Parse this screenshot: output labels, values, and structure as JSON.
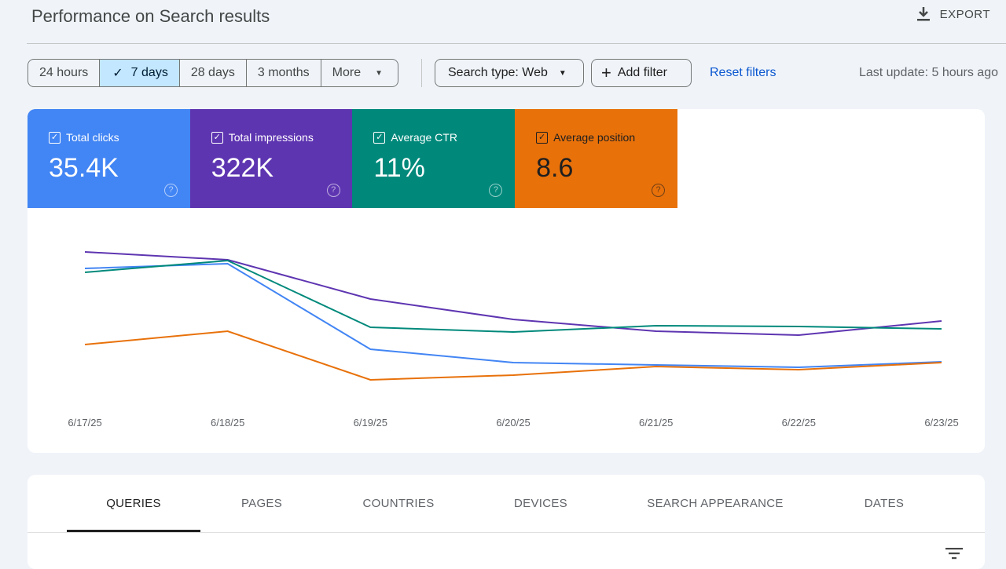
{
  "header": {
    "title": "Performance on Search results",
    "export_label": "EXPORT"
  },
  "filters": {
    "date_ranges": [
      {
        "label": "24 hours",
        "selected": false
      },
      {
        "label": "7 days",
        "selected": true
      },
      {
        "label": "28 days",
        "selected": false
      },
      {
        "label": "3 months",
        "selected": false
      },
      {
        "label": "More",
        "selected": false
      }
    ],
    "search_type": "Search type: Web",
    "add_filter": "Add filter",
    "reset": "Reset filters",
    "last_update": "Last update: 5 hours ago"
  },
  "metrics": [
    {
      "label": "Total clicks",
      "value": "35.4K",
      "color": "#4285f4",
      "checked": true
    },
    {
      "label": "Total impressions",
      "value": "322K",
      "color": "#5e35b1",
      "checked": true
    },
    {
      "label": "Average CTR",
      "value": "11%",
      "color": "#00897b",
      "checked": true
    },
    {
      "label": "Average position",
      "value": "8.6",
      "color": "#e8710a",
      "checked": true
    }
  ],
  "chart_data": {
    "type": "line",
    "categories": [
      "6/17/25",
      "6/18/25",
      "6/19/25",
      "6/20/25",
      "6/21/25",
      "6/22/25",
      "6/23/25"
    ],
    "y_axis": "hidden, independent relative scales per metric (values are relative levels 0-100)",
    "grid": false,
    "series": [
      {
        "name": "Total clicks",
        "color": "#4285f4",
        "values": [
          79,
          82,
          27.5,
          19,
          17.5,
          16,
          19.5
        ]
      },
      {
        "name": "Total impressions",
        "color": "#5e35b1",
        "values": [
          89.5,
          84.5,
          59.5,
          46.5,
          39,
          36.5,
          45.5
        ]
      },
      {
        "name": "Average CTR",
        "color": "#00897b",
        "values": [
          76.5,
          84,
          41.5,
          38.5,
          42.5,
          42,
          40.5
        ]
      },
      {
        "name": "Average position",
        "color": "#e8710a",
        "values": [
          30.5,
          39,
          8,
          11,
          16.5,
          14.5,
          19
        ]
      }
    ]
  },
  "tabs": [
    {
      "label": "QUERIES",
      "active": true
    },
    {
      "label": "PAGES"
    },
    {
      "label": "COUNTRIES"
    },
    {
      "label": "DEVICES"
    },
    {
      "label": "SEARCH APPEARANCE"
    },
    {
      "label": "DATES"
    }
  ]
}
